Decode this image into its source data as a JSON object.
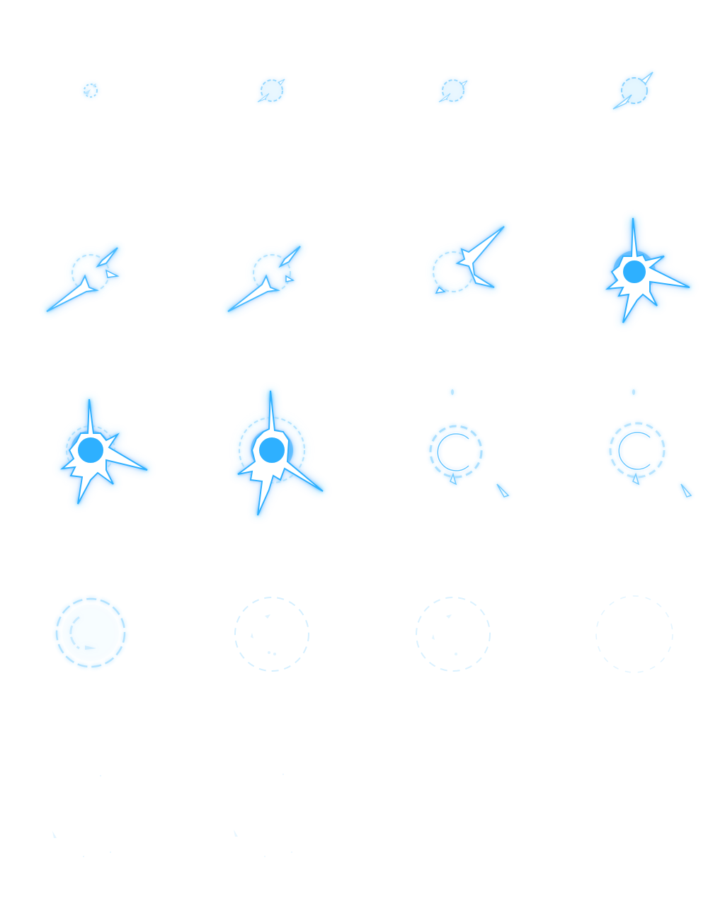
{
  "sprite_sheet": {
    "columns": 4,
    "rows": 5,
    "glow_color": "#3fb8ff",
    "core_color": "#ffffff",
    "stroke_color": "#9fe0ff",
    "frames": [
      {
        "id": 1,
        "effect": "spark-ring",
        "intensity": 0.25
      },
      {
        "id": 2,
        "effect": "spark-ring",
        "intensity": 0.35
      },
      {
        "id": 3,
        "effect": "spark-ring",
        "intensity": 0.35
      },
      {
        "id": 4,
        "effect": "spark-ring-spike",
        "intensity": 0.45
      },
      {
        "id": 5,
        "effect": "burst-diagonal",
        "intensity": 0.8
      },
      {
        "id": 6,
        "effect": "burst-diagonal",
        "intensity": 0.8
      },
      {
        "id": 7,
        "effect": "burst-long-spike",
        "intensity": 0.85
      },
      {
        "id": 8,
        "effect": "star-burst",
        "intensity": 1.0
      },
      {
        "id": 9,
        "effect": "star-burst",
        "intensity": 1.0
      },
      {
        "id": 10,
        "effect": "star-burst",
        "intensity": 1.0
      },
      {
        "id": 11,
        "effect": "fading-ring",
        "intensity": 0.6
      },
      {
        "id": 12,
        "effect": "fading-ring",
        "intensity": 0.55
      },
      {
        "id": 13,
        "effect": "dashed-ring",
        "intensity": 0.45
      },
      {
        "id": 14,
        "effect": "faint-dashed-ring",
        "intensity": 0.3
      },
      {
        "id": 15,
        "effect": "faint-dashed-ring",
        "intensity": 0.28
      },
      {
        "id": 16,
        "effect": "faint-dashed-ring",
        "intensity": 0.22
      },
      {
        "id": 17,
        "effect": "residue",
        "intensity": 0.12
      },
      {
        "id": 18,
        "effect": "residue",
        "intensity": 0.1
      },
      {
        "id": 19,
        "effect": "empty",
        "intensity": 0
      },
      {
        "id": 20,
        "effect": "empty",
        "intensity": 0
      }
    ]
  }
}
